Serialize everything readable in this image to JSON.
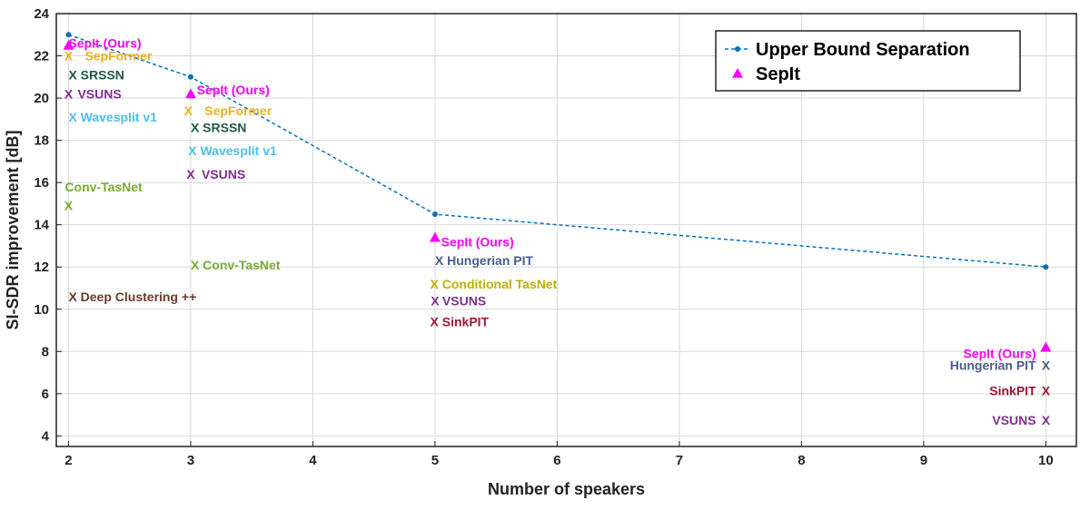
{
  "chart_data": {
    "type": "scatter",
    "xlabel": "Number of speakers",
    "ylabel": "SI-SDR improvement [dB]",
    "xlim": [
      1.9,
      10.25
    ],
    "ylim": [
      3.5,
      24
    ],
    "xticks": [
      2,
      3,
      4,
      5,
      6,
      7,
      8,
      9,
      10
    ],
    "yticks": [
      4,
      6,
      8,
      10,
      12,
      14,
      16,
      18,
      20,
      22,
      24
    ],
    "grid": true,
    "legend_position": "top-right",
    "legend": [
      {
        "label": "Upper Bound Separation",
        "color": "#0072BD",
        "marker": "dot-dashed-line"
      },
      {
        "label": "SepIt",
        "color": "#FF00FF",
        "marker": "triangle"
      }
    ],
    "series": [
      {
        "name": "Upper Bound Separation",
        "color": "#0072BD",
        "style": "dashed-line",
        "points": [
          {
            "x": 2,
            "y": 23.0
          },
          {
            "x": 3,
            "y": 21.0
          },
          {
            "x": 5,
            "y": 14.5
          },
          {
            "x": 10,
            "y": 12.0
          }
        ]
      },
      {
        "name": "SepIt",
        "color": "#FF00FF",
        "style": "triangle",
        "points": [
          {
            "x": 2,
            "y": 22.5
          },
          {
            "x": 3,
            "y": 20.2
          },
          {
            "x": 5,
            "y": 13.4
          },
          {
            "x": 10,
            "y": 8.2
          }
        ]
      }
    ],
    "annotations": [
      {
        "text": "SepIt (Ours)",
        "x": 2,
        "y": 22.6,
        "color": "#FF00FF",
        "anchor": "start"
      },
      {
        "text": "X",
        "x": 2,
        "y": 22.0,
        "color": "#EDB120",
        "anchor": "middle"
      },
      {
        "text": "SepFormer",
        "x": 2,
        "y": 22.0,
        "color": "#EDB120",
        "anchor": "start",
        "gap": 18
      },
      {
        "text": "X SRSSN",
        "x": 2,
        "y": 21.1,
        "color": "#1E5A3C",
        "anchor": "start"
      },
      {
        "text": "X",
        "x": 2,
        "y": 20.2,
        "color": "#7E2F8E",
        "anchor": "middle"
      },
      {
        "text": "VSUNS",
        "x": 2,
        "y": 20.2,
        "color": "#7E2F8E",
        "anchor": "start",
        "gap": 10
      },
      {
        "text": "X Wavesplit v1",
        "x": 2,
        "y": 19.1,
        "color": "#4DBEEE",
        "anchor": "start"
      },
      {
        "text": "Conv-TasNet",
        "x": 1.97,
        "y": 15.8,
        "color": "#77AC30",
        "anchor": "start"
      },
      {
        "text": "X",
        "x": 2,
        "y": 14.9,
        "color": "#77AC30",
        "anchor": "middle"
      },
      {
        "text": "X Deep Clustering ++",
        "x": 2,
        "y": 10.6,
        "color": "#6B3A2A",
        "anchor": "start"
      },
      {
        "text": "SepIt (Ours)",
        "x": 3.05,
        "y": 20.4,
        "color": "#FF00FF",
        "anchor": "start"
      },
      {
        "text": "X",
        "x": 2.98,
        "y": 19.4,
        "color": "#EDB120",
        "anchor": "middle"
      },
      {
        "text": "SepFormer",
        "x": 2.98,
        "y": 19.4,
        "color": "#EDB120",
        "anchor": "start",
        "gap": 18
      },
      {
        "text": "X SRSSN",
        "x": 3,
        "y": 18.6,
        "color": "#1E5A3C",
        "anchor": "start"
      },
      {
        "text": "X Wavesplit v1",
        "x": 2.98,
        "y": 17.5,
        "color": "#4DBEEE",
        "anchor": "start"
      },
      {
        "text": "X",
        "x": 3,
        "y": 16.4,
        "color": "#7E2F8E",
        "anchor": "middle"
      },
      {
        "text": "VSUNS",
        "x": 3,
        "y": 16.4,
        "color": "#7E2F8E",
        "anchor": "start",
        "gap": 12
      },
      {
        "text": "X Conv-TasNet",
        "x": 3,
        "y": 12.1,
        "color": "#77AC30",
        "anchor": "start"
      },
      {
        "text": "SepIt (Ours)",
        "x": 5.05,
        "y": 13.2,
        "color": "#FF00FF",
        "anchor": "start"
      },
      {
        "text": "X Hungerian PIT",
        "x": 5,
        "y": 12.3,
        "color": "#4A5E8C",
        "anchor": "start"
      },
      {
        "text": "X Conditional TasNet",
        "x": 4.96,
        "y": 11.2,
        "color": "#C0B000",
        "anchor": "start"
      },
      {
        "text": "X",
        "x": 5,
        "y": 10.4,
        "color": "#7E2F8E",
        "anchor": "middle"
      },
      {
        "text": "VSUNS",
        "x": 5,
        "y": 10.4,
        "color": "#7E2F8E",
        "anchor": "start",
        "gap": 8
      },
      {
        "text": "X SinkPIT",
        "x": 4.96,
        "y": 9.4,
        "color": "#A2142F",
        "anchor": "start"
      },
      {
        "text": "SepIt (Ours)",
        "x": 9.92,
        "y": 7.9,
        "color": "#FF00FF",
        "anchor": "end"
      },
      {
        "text": "Hungerian PIT",
        "x": 9.92,
        "y": 7.35,
        "color": "#4A5E8C",
        "anchor": "end"
      },
      {
        "text": "X",
        "x": 10,
        "y": 7.35,
        "color": "#4A5E8C",
        "anchor": "middle"
      },
      {
        "text": "SinkPIT",
        "x": 9.92,
        "y": 6.15,
        "color": "#A2142F",
        "anchor": "end"
      },
      {
        "text": "X",
        "x": 10,
        "y": 6.15,
        "color": "#A2142F",
        "anchor": "middle"
      },
      {
        "text": "VSUNS",
        "x": 9.92,
        "y": 4.75,
        "color": "#7E2F8E",
        "anchor": "end"
      },
      {
        "text": "X",
        "x": 10,
        "y": 4.75,
        "color": "#7E2F8E",
        "anchor": "middle"
      }
    ]
  }
}
